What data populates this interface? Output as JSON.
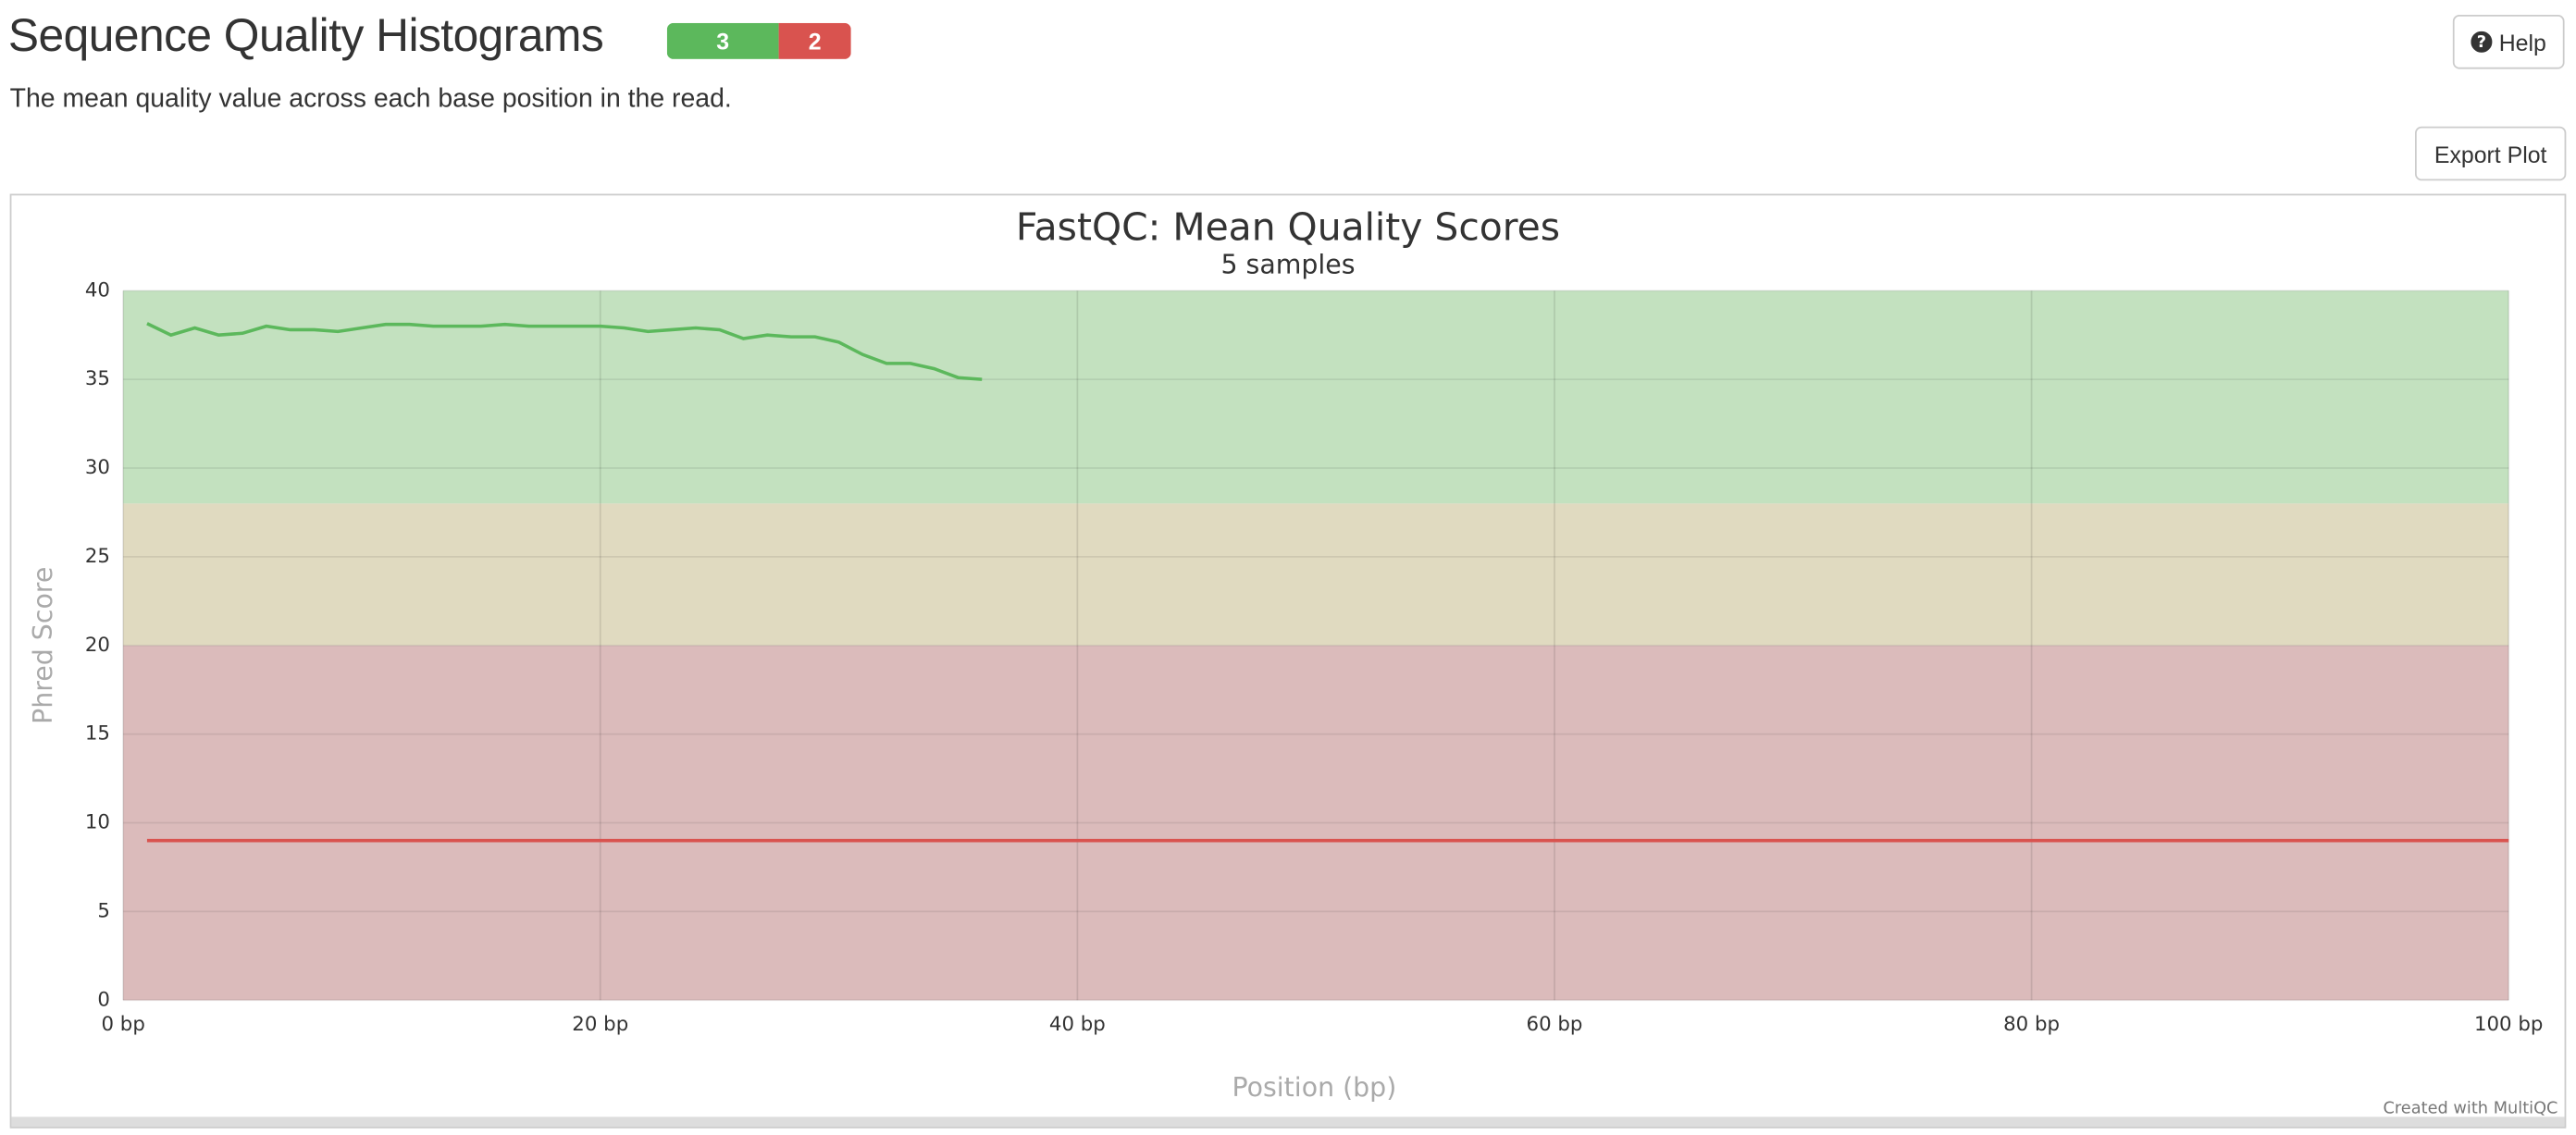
{
  "header": {
    "title": "Sequence Quality Histograms",
    "status_counts": [
      3,
      2
    ],
    "help": "Help",
    "description": "The mean quality value across each base position in the read.",
    "export": "Export Plot"
  },
  "chart_data": {
    "type": "line",
    "title": "FastQC: Mean Quality Scores",
    "subtitle": "5 samples",
    "x_label": "Position (bp)",
    "y_label": "Phred Score",
    "credit": "Created with MultiQC",
    "xlim": [
      0,
      100
    ],
    "ylim": [
      0,
      40
    ],
    "xticks": [
      {
        "value": 0,
        "label": "0 bp"
      },
      {
        "value": 20,
        "label": "20 bp"
      },
      {
        "value": 40,
        "label": "40 bp"
      },
      {
        "value": 60,
        "label": "60 bp"
      },
      {
        "value": 80,
        "label": "80 bp"
      },
      {
        "value": 100,
        "label": "100 bp"
      }
    ],
    "yticks": [
      0,
      5,
      10,
      15,
      20,
      25,
      30,
      35,
      40
    ],
    "grid": true,
    "bands": [
      {
        "from": 28,
        "to": 40,
        "color": "#c3e1bf"
      },
      {
        "from": 20,
        "to": 28,
        "color": "#e0dac0"
      },
      {
        "from": 0,
        "to": 20,
        "color": "#dbbbbb"
      }
    ],
    "series": [
      {
        "color": "#5cb85c",
        "x": [
          1,
          2,
          3,
          4,
          5,
          6,
          7,
          8,
          9,
          10,
          11,
          12,
          13,
          14,
          15,
          16,
          17,
          18,
          19,
          20,
          21,
          22,
          23,
          24,
          25,
          26,
          27,
          28,
          29,
          30,
          31,
          32,
          33,
          34,
          35,
          36
        ],
        "values": [
          38.15,
          37.5,
          37.9,
          37.5,
          37.6,
          38.0,
          37.8,
          37.8,
          37.7,
          37.9,
          38.1,
          38.1,
          38.0,
          38.0,
          38.0,
          38.1,
          38.0,
          38.0,
          38.0,
          38.0,
          37.9,
          37.7,
          37.8,
          37.9,
          37.8,
          37.3,
          37.5,
          37.4,
          37.4,
          37.1,
          36.4,
          35.9,
          35.9,
          35.6,
          35.1,
          35.0
        ]
      },
      {
        "color": "#d9534f",
        "x": [
          1,
          100
        ],
        "values": [
          9,
          9
        ]
      }
    ]
  }
}
